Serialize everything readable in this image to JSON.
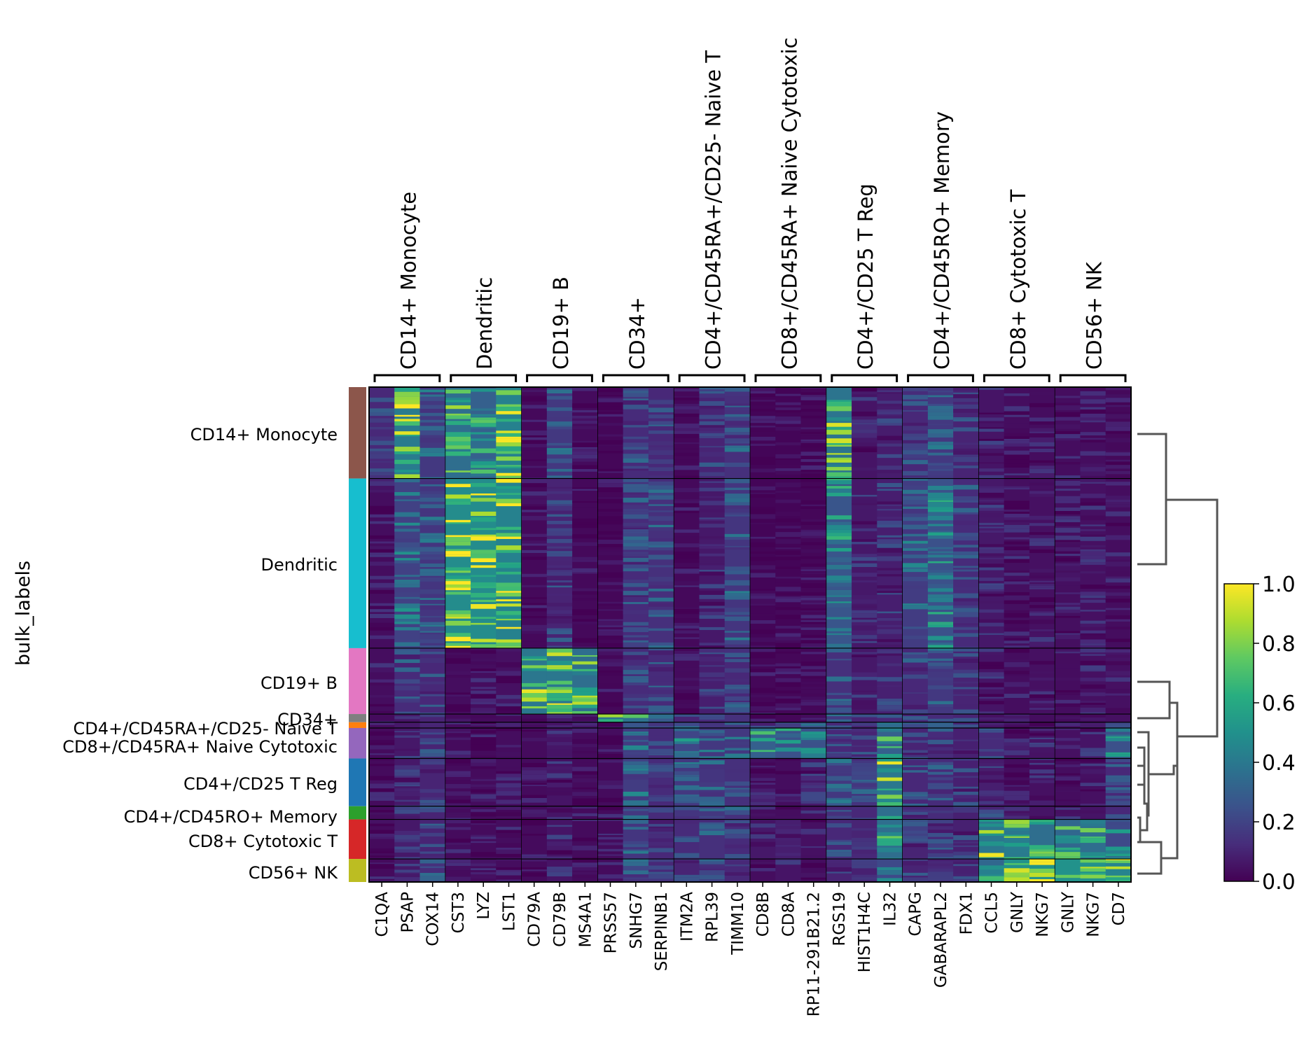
{
  "chart_data": {
    "type": "heatmap",
    "title": "",
    "xlabel": "",
    "ylabel": "bulk_labels",
    "genes": [
      "C1QA",
      "PSAP",
      "COX14",
      "CST3",
      "LYZ",
      "LST1",
      "CD79A",
      "CD79B",
      "MS4A1",
      "PRSS57",
      "SNHG7",
      "SERPINB1",
      "ITM2A",
      "RPL39",
      "TIMM10",
      "CD8B",
      "CD8A",
      "RP11-291B21.2",
      "RGS19",
      "HIST1H4C",
      "IL32",
      "CAPG",
      "GABARAPL2",
      "FDX1",
      "CCL5",
      "GNLY",
      "NKG7",
      "GNLY",
      "NKG7",
      "CD7"
    ],
    "gene_groups": [
      {
        "label": "CD14+ Monocyte",
        "genes": [
          "C1QA",
          "PSAP",
          "COX14"
        ]
      },
      {
        "label": "Dendritic",
        "genes": [
          "CST3",
          "LYZ",
          "LST1"
        ]
      },
      {
        "label": "CD19+ B",
        "genes": [
          "CD79A",
          "CD79B",
          "MS4A1"
        ]
      },
      {
        "label": "CD34+",
        "genes": [
          "PRSS57",
          "SNHG7",
          "SERPINB1"
        ]
      },
      {
        "label": "CD4+/CD45RA+/CD25- Naive T",
        "genes": [
          "ITM2A",
          "RPL39",
          "TIMM10"
        ]
      },
      {
        "label": "CD8+/CD45RA+ Naive Cytotoxic",
        "genes": [
          "CD8B",
          "CD8A",
          "RP11-291B21.2"
        ]
      },
      {
        "label": "CD4+/CD25 T Reg",
        "genes": [
          "RGS19",
          "HIST1H4C",
          "IL32"
        ]
      },
      {
        "label": "CD4+/CD45RO+ Memory",
        "genes": [
          "CAPG",
          "GABARAPL2",
          "FDX1"
        ]
      },
      {
        "label": "CD8+ Cytotoxic T",
        "genes": [
          "CCL5",
          "GNLY",
          "NKG7"
        ]
      },
      {
        "label": "CD56+ NK",
        "genes": [
          "GNLY",
          "NKG7",
          "CD7"
        ]
      }
    ],
    "cell_groups": [
      {
        "label": "CD14+ Monocyte",
        "color": "#8c564b",
        "fraction": 0.1847
      },
      {
        "label": "Dendritic",
        "color": "#17becf",
        "fraction": 0.3428
      },
      {
        "label": "CD19+ B",
        "color": "#e377c2",
        "fraction": 0.1331
      },
      {
        "label": "CD34+",
        "color": "#7f7f7f",
        "fraction": 0.0166
      },
      {
        "label": "CD4+/CD45RA+/CD25- Naive T",
        "color": "#ff7f0e",
        "fraction": 0.0116
      },
      {
        "label": "CD8+/CD45RA+ Naive Cytotoxic",
        "color": "#9467bd",
        "fraction": 0.0616
      },
      {
        "label": "CD4+/CD25 T Reg",
        "color": "#1f77b4",
        "fraction": 0.0965
      },
      {
        "label": "CD4+/CD45RO+ Memory",
        "color": "#2ca02c",
        "fraction": 0.0266
      },
      {
        "label": "CD8+ Cytotoxic T",
        "color": "#d62728",
        "fraction": 0.0799
      },
      {
        "label": "CD56+ NK",
        "color": "#bcbd22",
        "fraction": 0.0466
      }
    ],
    "mean_expression": [
      [
        0.2,
        0.75,
        0.3,
        0.65,
        0.55,
        0.8,
        0.04,
        0.3,
        0.05,
        0.03,
        0.22,
        0.2,
        0.03,
        0.18,
        0.25,
        0.02,
        0.02,
        0.03,
        0.7,
        0.1,
        0.14,
        0.2,
        0.3,
        0.18,
        0.1,
        0.06,
        0.06,
        0.06,
        0.06,
        0.04
      ],
      [
        0.06,
        0.35,
        0.28,
        0.88,
        0.88,
        0.8,
        0.04,
        0.18,
        0.04,
        0.03,
        0.22,
        0.25,
        0.04,
        0.12,
        0.28,
        0.02,
        0.02,
        0.03,
        0.48,
        0.12,
        0.15,
        0.32,
        0.45,
        0.22,
        0.12,
        0.07,
        0.08,
        0.07,
        0.08,
        0.06
      ],
      [
        0.06,
        0.22,
        0.2,
        0.06,
        0.06,
        0.08,
        0.72,
        0.72,
        0.65,
        0.03,
        0.22,
        0.22,
        0.05,
        0.15,
        0.2,
        0.03,
        0.03,
        0.03,
        0.25,
        0.12,
        0.16,
        0.2,
        0.3,
        0.18,
        0.1,
        0.06,
        0.08,
        0.06,
        0.08,
        0.08
      ],
      [
        0.05,
        0.1,
        0.18,
        0.05,
        0.05,
        0.06,
        0.05,
        0.12,
        0.05,
        0.7,
        0.62,
        0.5,
        0.18,
        0.2,
        0.25,
        0.03,
        0.03,
        0.03,
        0.3,
        0.18,
        0.2,
        0.2,
        0.22,
        0.18,
        0.08,
        0.05,
        0.06,
        0.05,
        0.06,
        0.08
      ],
      [
        0.05,
        0.12,
        0.18,
        0.05,
        0.05,
        0.06,
        0.05,
        0.1,
        0.05,
        0.06,
        0.3,
        0.22,
        0.4,
        0.28,
        0.3,
        0.15,
        0.12,
        0.3,
        0.2,
        0.18,
        0.5,
        0.18,
        0.22,
        0.16,
        0.18,
        0.06,
        0.08,
        0.06,
        0.08,
        0.4
      ],
      [
        0.05,
        0.12,
        0.18,
        0.05,
        0.05,
        0.06,
        0.05,
        0.1,
        0.05,
        0.06,
        0.32,
        0.22,
        0.38,
        0.3,
        0.3,
        0.55,
        0.45,
        0.45,
        0.2,
        0.18,
        0.55,
        0.18,
        0.22,
        0.16,
        0.22,
        0.08,
        0.1,
        0.08,
        0.1,
        0.45
      ],
      [
        0.05,
        0.12,
        0.18,
        0.05,
        0.05,
        0.06,
        0.05,
        0.1,
        0.05,
        0.05,
        0.32,
        0.22,
        0.3,
        0.28,
        0.25,
        0.06,
        0.06,
        0.12,
        0.3,
        0.22,
        0.72,
        0.2,
        0.22,
        0.16,
        0.15,
        0.06,
        0.08,
        0.06,
        0.08,
        0.2
      ],
      [
        0.05,
        0.12,
        0.18,
        0.05,
        0.05,
        0.06,
        0.05,
        0.1,
        0.05,
        0.05,
        0.3,
        0.22,
        0.28,
        0.28,
        0.25,
        0.06,
        0.06,
        0.08,
        0.25,
        0.2,
        0.65,
        0.2,
        0.22,
        0.16,
        0.18,
        0.08,
        0.1,
        0.08,
        0.1,
        0.2
      ],
      [
        0.05,
        0.12,
        0.18,
        0.05,
        0.05,
        0.06,
        0.05,
        0.1,
        0.05,
        0.05,
        0.28,
        0.2,
        0.22,
        0.25,
        0.22,
        0.12,
        0.15,
        0.08,
        0.2,
        0.18,
        0.65,
        0.18,
        0.2,
        0.16,
        0.72,
        0.62,
        0.65,
        0.6,
        0.65,
        0.4
      ],
      [
        0.05,
        0.12,
        0.25,
        0.05,
        0.05,
        0.06,
        0.05,
        0.1,
        0.05,
        0.05,
        0.25,
        0.2,
        0.18,
        0.22,
        0.2,
        0.06,
        0.1,
        0.06,
        0.18,
        0.16,
        0.4,
        0.18,
        0.2,
        0.16,
        0.6,
        0.92,
        0.92,
        0.92,
        0.92,
        0.82
      ]
    ],
    "colorbar": {
      "colormap": "viridis",
      "range": [
        0.0,
        1.0
      ],
      "ticks": [
        "0.0",
        "0.2",
        "0.4",
        "0.6",
        "0.8",
        "1.0"
      ]
    },
    "dendrogram": {
      "side": "right",
      "leaf_order": [
        "CD14+ Monocyte",
        "Dendritic",
        "CD19+ B",
        "CD34+",
        "CD4+/CD45RA+/CD25- Naive T",
        "CD8+/CD45RA+ Naive Cytotoxic",
        "CD4+/CD25 T Reg",
        "CD4+/CD45RO+ Memory",
        "CD8+ Cytotoxic T",
        "CD56+ NK"
      ]
    }
  }
}
